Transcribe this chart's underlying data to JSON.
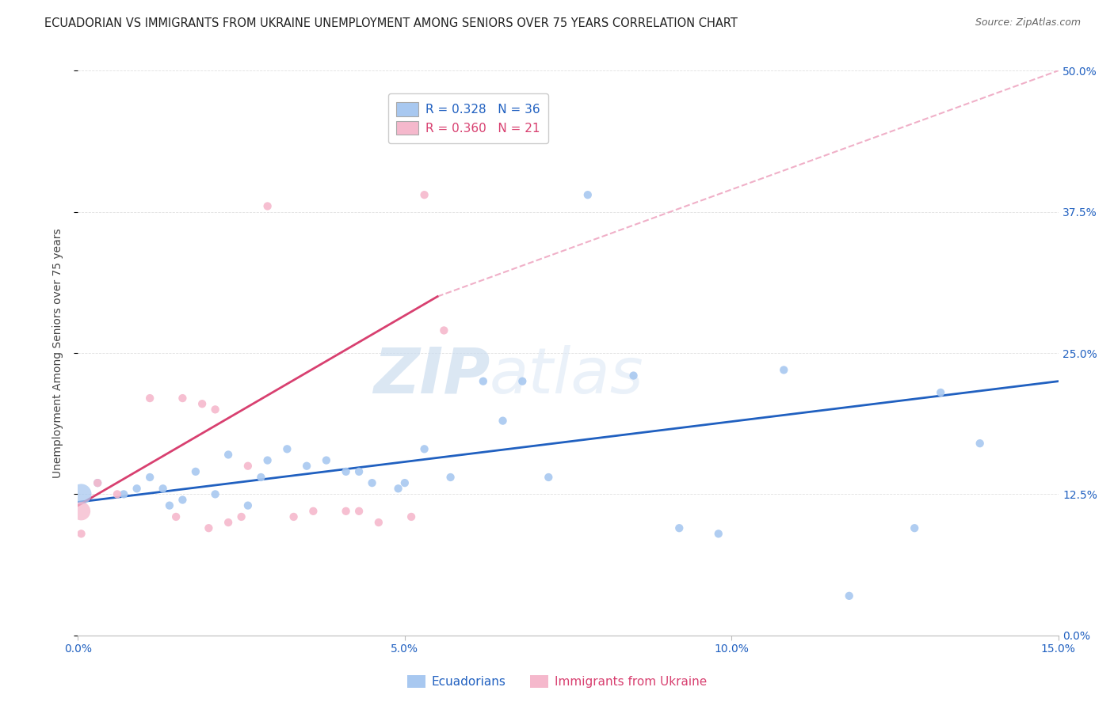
{
  "title": "ECUADORIAN VS IMMIGRANTS FROM UKRAINE UNEMPLOYMENT AMONG SENIORS OVER 75 YEARS CORRELATION CHART",
  "source": "Source: ZipAtlas.com",
  "ylabel": "Unemployment Among Seniors over 75 years",
  "xlabel_vals": [
    0.0,
    5.0,
    10.0,
    15.0
  ],
  "ylabel_vals": [
    0.0,
    12.5,
    25.0,
    37.5,
    50.0
  ],
  "xmin": 0.0,
  "xmax": 15.0,
  "ymin": 0.0,
  "ymax": 50.0,
  "legend_blue_label": "Ecuadorians",
  "legend_pink_label": "Immigrants from Ukraine",
  "legend_blue_R": "R = 0.328",
  "legend_blue_N": "N = 36",
  "legend_pink_R": "R = 0.360",
  "legend_pink_N": "N = 21",
  "blue_scatter_x": [
    0.3,
    0.7,
    0.9,
    1.1,
    1.4,
    1.6,
    1.8,
    2.1,
    2.3,
    2.6,
    2.9,
    3.2,
    3.5,
    3.8,
    4.1,
    4.5,
    4.9,
    5.3,
    5.7,
    6.2,
    6.8,
    7.2,
    8.5,
    9.2,
    9.8,
    10.8,
    11.8,
    12.8,
    13.2,
    13.8,
    1.3,
    2.8,
    4.3,
    5.0,
    6.5,
    7.8
  ],
  "blue_scatter_y": [
    13.5,
    12.5,
    13.0,
    14.0,
    11.5,
    12.0,
    14.5,
    12.5,
    16.0,
    11.5,
    15.5,
    16.5,
    15.0,
    15.5,
    14.5,
    13.5,
    13.0,
    16.5,
    14.0,
    22.5,
    22.5,
    14.0,
    23.0,
    9.5,
    9.0,
    23.5,
    3.5,
    9.5,
    21.5,
    17.0,
    13.0,
    14.0,
    14.5,
    13.5,
    19.0,
    39.0
  ],
  "blue_big_x": [
    0.05
  ],
  "blue_big_y": [
    12.5
  ],
  "blue_big_size": [
    350
  ],
  "pink_scatter_x": [
    0.05,
    0.3,
    0.6,
    1.1,
    1.6,
    1.9,
    2.1,
    2.3,
    2.6,
    2.9,
    3.3,
    3.6,
    4.1,
    4.6,
    5.1,
    5.6,
    2.0,
    4.3,
    5.3,
    1.5,
    2.5
  ],
  "pink_scatter_y": [
    9.0,
    13.5,
    12.5,
    21.0,
    21.0,
    20.5,
    20.0,
    10.0,
    15.0,
    38.0,
    10.5,
    11.0,
    11.0,
    10.0,
    10.5,
    27.0,
    9.5,
    11.0,
    39.0,
    10.5,
    10.5
  ],
  "pink_big_x": [
    0.05
  ],
  "pink_big_y": [
    11.0
  ],
  "pink_big_size": [
    280
  ],
  "blue_line_x": [
    0.0,
    15.0
  ],
  "blue_line_y": [
    11.8,
    22.5
  ],
  "pink_solid_line_x": [
    0.0,
    5.5
  ],
  "pink_solid_line_y": [
    11.5,
    30.0
  ],
  "pink_dash_line_x": [
    5.5,
    15.0
  ],
  "pink_dash_line_y": [
    30.0,
    50.0
  ],
  "blue_color": "#a8c8f0",
  "pink_color": "#f5b8cc",
  "blue_line_color": "#2060c0",
  "pink_line_color": "#d84070",
  "pink_dash_color": "#f0b0c8",
  "watermark_zip": "ZIP",
  "watermark_atlas": "atlas",
  "background_color": "#ffffff",
  "grid_color": "#e0e0e0"
}
